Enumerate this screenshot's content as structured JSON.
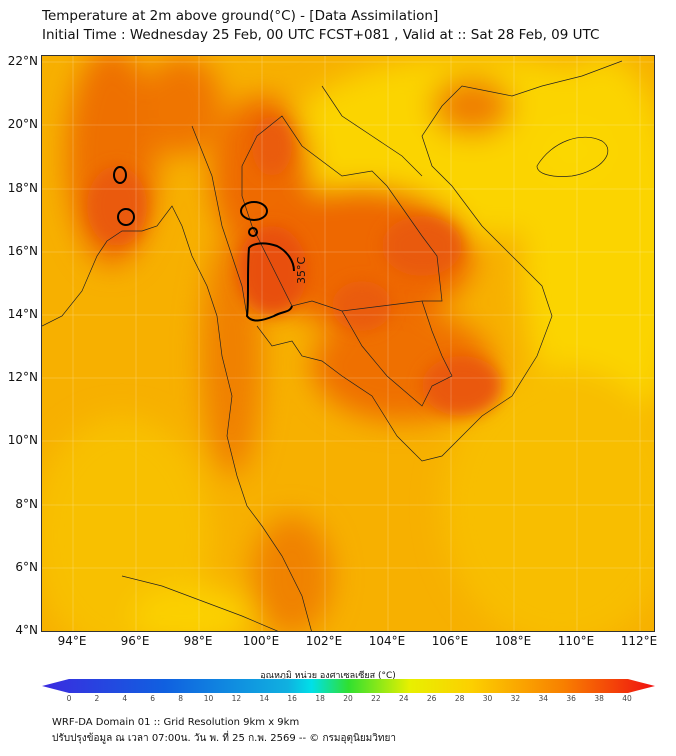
{
  "title": {
    "line1": "Temperature at 2m above ground(°C) - [Data Assimilation]",
    "line2": "Initial Time : Wednesday 25 Feb, 00 UTC FCST+081 , Valid at :: Sat 28 Feb, 09 UTC"
  },
  "map": {
    "lat_labels": [
      "22°N",
      "20°N",
      "18°N",
      "16°N",
      "14°N",
      "12°N",
      "10°N",
      "8°N",
      "6°N",
      "4°N"
    ],
    "lon_labels": [
      "94°E",
      "96°E",
      "98°E",
      "100°E",
      "102°E",
      "104°E",
      "106°E",
      "108°E",
      "110°E",
      "112°E"
    ],
    "contour_label": "35°C",
    "colors": {
      "base": "#f9b800",
      "orange": "#f08000",
      "red": "#e8500c",
      "light": "#fbd800"
    }
  },
  "colorbar": {
    "title": "อุณหภูมิ หน่วย องศาเซลเซียส (°C)",
    "ticks": [
      "0",
      "2",
      "4",
      "6",
      "8",
      "10",
      "12",
      "14",
      "16",
      "18",
      "20",
      "22",
      "24",
      "26",
      "28",
      "30",
      "32",
      "34",
      "36",
      "38",
      "40"
    ]
  },
  "footer": {
    "line1": "WRF-DA Domain 01 :: Grid Resolution 9km x 9km",
    "line2": "ปรับปรุงข้อมูล ณ เวลา 07:00น. วัน พ. ที่ 25 ก.พ. 2569 -- © กรมอุตุนิยมวิทยา"
  }
}
